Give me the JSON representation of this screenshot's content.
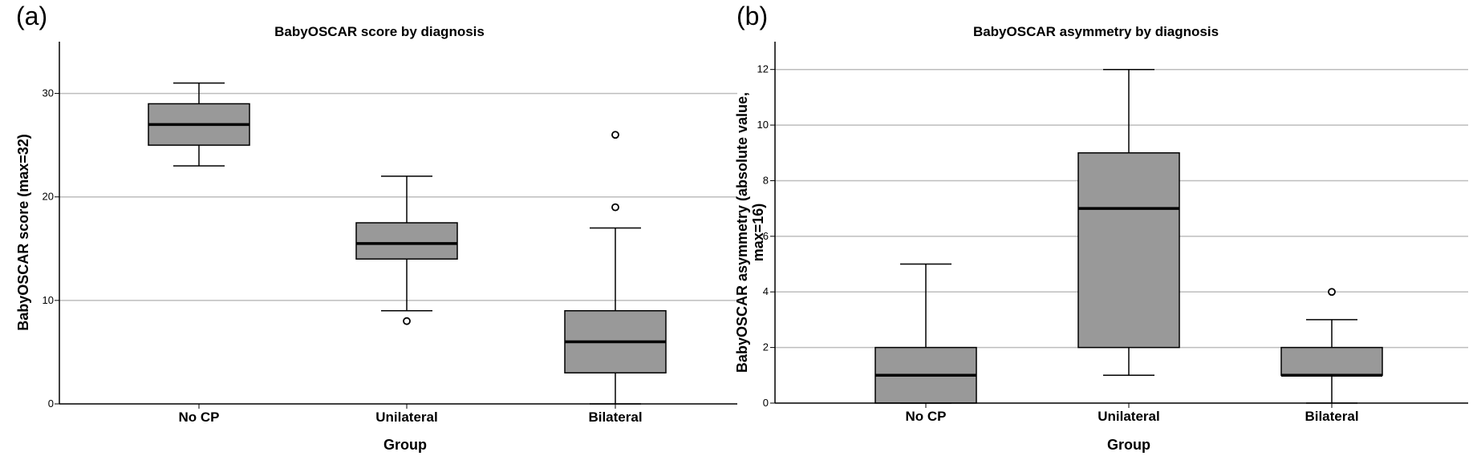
{
  "chart_data": [
    {
      "type": "box",
      "panel_label": "(a)",
      "title": "BabyOSCAR score by diagnosis",
      "xlabel": "Group",
      "ylabel": "BabyOSCAR score (max=32)",
      "ylim": [
        0,
        35
      ],
      "yticks": [
        0,
        10,
        20,
        30
      ],
      "grid": "horizontal",
      "categories": [
        "No CP",
        "Unilateral",
        "Bilateral"
      ],
      "boxes": [
        {
          "category": "No CP",
          "whisker_low": 23,
          "q1": 25,
          "median": 27,
          "q3": 29,
          "whisker_high": 31,
          "outliers": []
        },
        {
          "category": "Unilateral",
          "whisker_low": 9,
          "q1": 14,
          "median": 15.5,
          "q3": 17.5,
          "whisker_high": 22,
          "outliers": [
            8
          ]
        },
        {
          "category": "Bilateral",
          "whisker_low": 0,
          "q1": 3,
          "median": 6,
          "q3": 9,
          "whisker_high": 17,
          "outliers": [
            19,
            26
          ]
        }
      ],
      "box_color": "#999999"
    },
    {
      "type": "box",
      "panel_label": "(b)",
      "title": "BabyOSCAR asymmetry by diagnosis",
      "xlabel": "Group",
      "ylabel_lines": [
        "BabyOSCAR asymmetry (absolute value,",
        "max=16)"
      ],
      "ylim": [
        0,
        13
      ],
      "yticks": [
        0,
        2,
        4,
        6,
        8,
        10,
        12
      ],
      "grid": "horizontal",
      "categories": [
        "No CP",
        "Unilateral",
        "Bilateral"
      ],
      "boxes": [
        {
          "category": "No CP",
          "whisker_low": 0,
          "q1": 0,
          "median": 1,
          "q3": 2,
          "whisker_high": 5,
          "outliers": []
        },
        {
          "category": "Unilateral",
          "whisker_low": 1,
          "q1": 2,
          "median": 7,
          "q3": 9,
          "whisker_high": 12,
          "outliers": []
        },
        {
          "category": "Bilateral",
          "whisker_low": 0,
          "q1": 1,
          "median": 1,
          "q3": 2,
          "whisker_high": 3,
          "outliers": [
            4
          ]
        }
      ],
      "box_color": "#999999"
    }
  ]
}
